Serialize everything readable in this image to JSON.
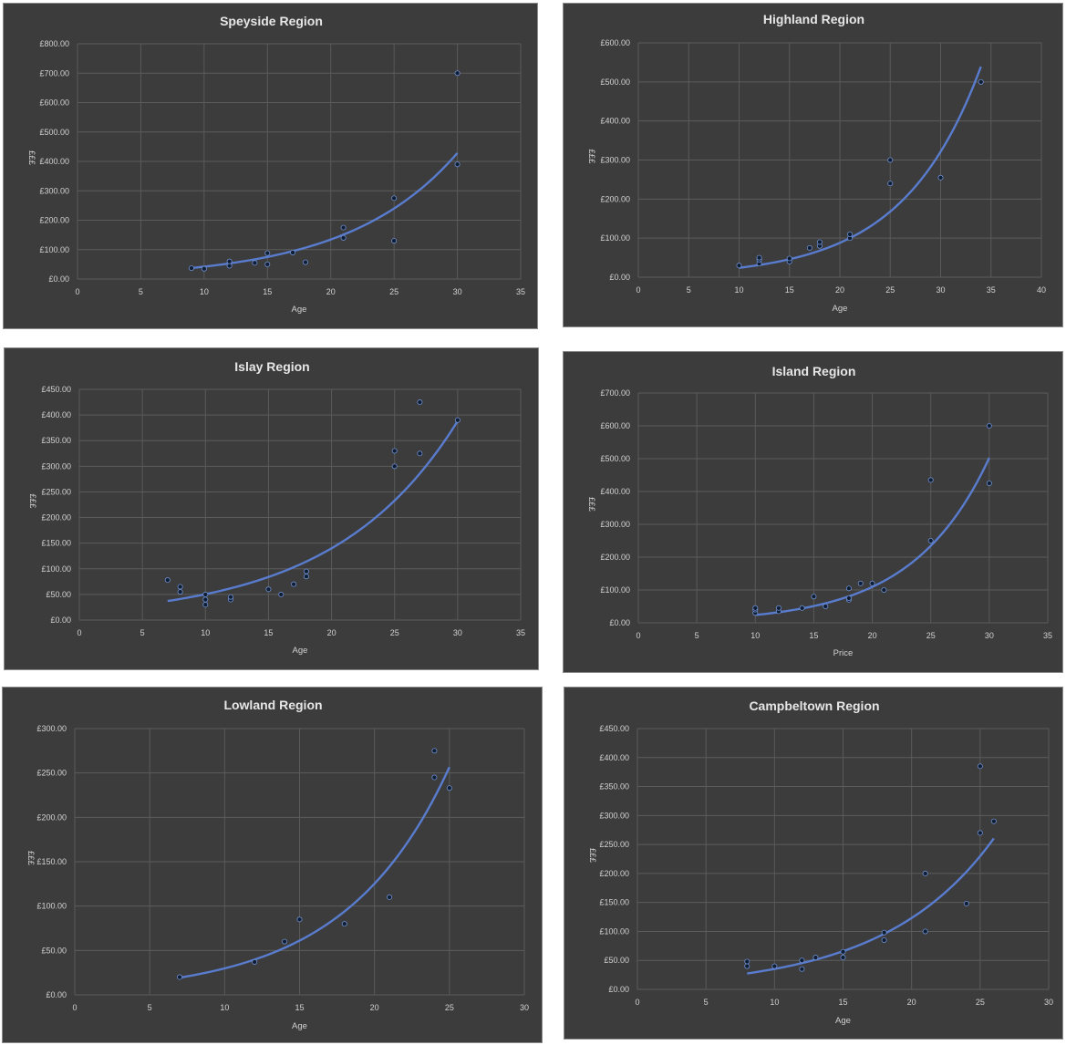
{
  "chart_data": [
    {
      "type": "scatter",
      "title": "Speyside Region",
      "xlabel": "Age",
      "ylabel": "£££",
      "xlim": [
        0,
        35
      ],
      "xticks": [
        0,
        5,
        10,
        15,
        20,
        25,
        30,
        35
      ],
      "ylim": [
        0,
        800
      ],
      "yticks": [
        "£0.00",
        "£100.00",
        "£200.00",
        "£300.00",
        "£400.00",
        "£500.00",
        "£600.00",
        "£700.00",
        "£800.00"
      ],
      "trendline": "exponential",
      "points": [
        [
          9,
          37
        ],
        [
          10,
          35
        ],
        [
          12,
          45
        ],
        [
          12,
          60
        ],
        [
          14,
          55
        ],
        [
          15,
          50
        ],
        [
          15,
          88
        ],
        [
          17,
          90
        ],
        [
          18,
          57
        ],
        [
          21,
          140
        ],
        [
          21,
          175
        ],
        [
          25,
          275
        ],
        [
          25,
          130
        ],
        [
          30,
          390
        ],
        [
          30,
          700
        ]
      ],
      "trend_coeffs": [
        13.2,
        0.116
      ],
      "trend_range": [
        9,
        30
      ]
    },
    {
      "type": "scatter",
      "title": "Highland Region",
      "xlabel": "Age",
      "ylabel": "£££",
      "xlim": [
        0,
        40
      ],
      "xticks": [
        0,
        5,
        10,
        15,
        20,
        25,
        30,
        35,
        40
      ],
      "ylim": [
        0,
        600
      ],
      "yticks": [
        "£0.00",
        "£100.00",
        "£200.00",
        "£300.00",
        "£400.00",
        "£500.00",
        "£600.00"
      ],
      "trendline": "exponential",
      "points": [
        [
          10,
          30
        ],
        [
          12,
          35
        ],
        [
          12,
          45
        ],
        [
          12,
          50
        ],
        [
          15,
          40
        ],
        [
          15,
          48
        ],
        [
          17,
          75
        ],
        [
          18,
          80
        ],
        [
          18,
          90
        ],
        [
          21,
          100
        ],
        [
          21,
          110
        ],
        [
          25,
          240
        ],
        [
          25,
          300
        ],
        [
          30,
          255
        ],
        [
          34,
          500
        ]
      ],
      "trend_coeffs": [
        6.6,
        0.1295
      ],
      "trend_range": [
        10,
        34
      ]
    },
    {
      "type": "scatter",
      "title": "Islay Region",
      "xlabel": "Age",
      "ylabel": "£££",
      "xlim": [
        0,
        35
      ],
      "xticks": [
        0,
        5,
        10,
        15,
        20,
        25,
        30,
        35
      ],
      "ylim": [
        0,
        450
      ],
      "yticks": [
        "£0.00",
        "£50.00",
        "£100.00",
        "£150.00",
        "£200.00",
        "£250.00",
        "£300.00",
        "£350.00",
        "£400.00",
        "£450.00"
      ],
      "trendline": "exponential",
      "points": [
        [
          7,
          78
        ],
        [
          8,
          55
        ],
        [
          8,
          65
        ],
        [
          10,
          30
        ],
        [
          10,
          40
        ],
        [
          10,
          50
        ],
        [
          12,
          40
        ],
        [
          12,
          45
        ],
        [
          15,
          60
        ],
        [
          16,
          50
        ],
        [
          17,
          70
        ],
        [
          18,
          85
        ],
        [
          18,
          95
        ],
        [
          25,
          300
        ],
        [
          25,
          330
        ],
        [
          27,
          325
        ],
        [
          27,
          425
        ],
        [
          30,
          390
        ]
      ],
      "trend_coeffs": [
        18.2,
        0.102
      ],
      "trend_range": [
        7,
        30
      ]
    },
    {
      "type": "scatter",
      "title": "Island Region",
      "xlabel": "Price",
      "ylabel": "£££",
      "xlim": [
        0,
        35
      ],
      "xticks": [
        0,
        5,
        10,
        15,
        20,
        25,
        30,
        35
      ],
      "ylim": [
        0,
        700
      ],
      "yticks": [
        "£0.00",
        "£100.00",
        "£200.00",
        "£300.00",
        "£400.00",
        "£500.00",
        "£600.00",
        "£700.00"
      ],
      "trendline": "exponential",
      "points": [
        [
          10,
          30
        ],
        [
          10,
          40
        ],
        [
          10,
          45
        ],
        [
          12,
          35
        ],
        [
          12,
          45
        ],
        [
          14,
          45
        ],
        [
          15,
          80
        ],
        [
          16,
          50
        ],
        [
          18,
          70
        ],
        [
          18,
          75
        ],
        [
          18,
          105
        ],
        [
          19,
          120
        ],
        [
          20,
          120
        ],
        [
          21,
          100
        ],
        [
          25,
          250
        ],
        [
          25,
          435
        ],
        [
          30,
          425
        ],
        [
          30,
          600
        ]
      ],
      "trend_coeffs": [
        5.18,
        0.1525
      ],
      "trend_range": [
        10,
        30
      ]
    },
    {
      "type": "scatter",
      "title": "Lowland Region",
      "xlabel": "Age",
      "ylabel": "£££",
      "xlim": [
        0,
        30
      ],
      "xticks": [
        0,
        5,
        10,
        15,
        20,
        25,
        30
      ],
      "ylim": [
        0,
        300
      ],
      "yticks": [
        "£0.00",
        "£50.00",
        "£100.00",
        "£150.00",
        "£200.00",
        "£250.00",
        "£300.00"
      ],
      "trendline": "exponential",
      "points": [
        [
          7,
          20
        ],
        [
          12,
          37
        ],
        [
          14,
          60
        ],
        [
          15,
          85
        ],
        [
          18,
          80
        ],
        [
          21,
          110
        ],
        [
          24,
          245
        ],
        [
          24,
          275
        ],
        [
          25,
          233
        ]
      ],
      "trend_coeffs": [
        7.1,
        0.1435
      ],
      "trend_range": [
        7,
        25
      ]
    },
    {
      "type": "scatter",
      "title": "Campbeltown Region",
      "xlabel": "Age",
      "ylabel": "£££",
      "xlim": [
        0,
        30
      ],
      "xticks": [
        0,
        5,
        10,
        15,
        20,
        25,
        30
      ],
      "ylim": [
        0,
        450
      ],
      "yticks": [
        "£0.00",
        "£50.00",
        "£100.00",
        "£150.00",
        "£200.00",
        "£250.00",
        "£300.00",
        "£350.00",
        "£400.00",
        "£450.00"
      ],
      "trendline": "exponential",
      "points": [
        [
          8,
          40
        ],
        [
          8,
          48
        ],
        [
          10,
          40
        ],
        [
          12,
          35
        ],
        [
          12,
          50
        ],
        [
          13,
          55
        ],
        [
          15,
          55
        ],
        [
          15,
          65
        ],
        [
          18,
          85
        ],
        [
          18,
          98
        ],
        [
          21,
          100
        ],
        [
          21,
          200
        ],
        [
          24,
          148
        ],
        [
          25,
          270
        ],
        [
          25,
          385
        ],
        [
          26,
          290
        ]
      ],
      "trend_coeffs": [
        10.1,
        0.125
      ],
      "trend_range": [
        8,
        26
      ]
    }
  ]
}
